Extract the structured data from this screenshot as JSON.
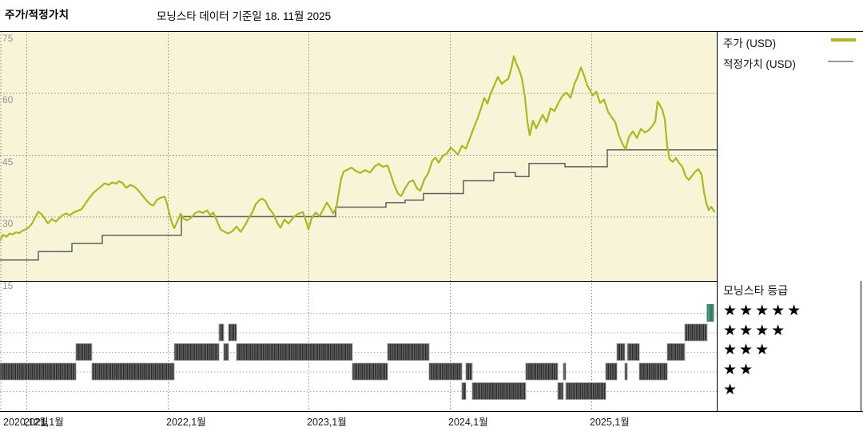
{
  "header": {
    "title": "주가/적정가치",
    "subtitle": "모닝스타 데이터 기준일 18. 11월 2025"
  },
  "legend": {
    "items": [
      {
        "label": "주가 (USD)",
        "series": "price"
      },
      {
        "label": "적정가치 (USD)",
        "series": "fair_value"
      }
    ]
  },
  "rating_legend": {
    "title": "모닝스타 등급",
    "levels": [
      5,
      4,
      3,
      2,
      1
    ],
    "star_char": "★"
  },
  "colors": {
    "price_line": "#adb81a",
    "fair_value_line": "#5e6061",
    "fair_value_swatch": "#9a9a9a",
    "plot_background": "#f7f4d7",
    "grid_line": "#8a8a8a",
    "rating_grid_line": "#ababab",
    "axis_label": "#939393",
    "rating_bar_base": "#2d2d2d",
    "rating_bar_stripe_light": "#7a7a7a",
    "rating_bar_stripe_mid": "#555555",
    "rating_bar_current_base": "#3b8a6d",
    "rating_bar_current_dark": "#2c6e54",
    "rating_bar_current_light": "#5aa185",
    "border": "#000000"
  },
  "chart_data": {
    "type": "line",
    "title": "주가/적정가치",
    "as_of_label": "모닝스타 데이터 기준일 18. 11월 2025",
    "x_unit": "chart-x (0..897 spans 2020-11 .. 2025-11)",
    "x_range": [
      0,
      897
    ],
    "ylim": [
      14.4,
      75
    ],
    "y_ticks": [
      75,
      60,
      45,
      30,
      15
    ],
    "x_gridlines": [
      33,
      210,
      386,
      563,
      740
    ],
    "x_tick_labels": [
      {
        "text": "2020,12월",
        "x": 4
      },
      {
        "text": "2021,1월",
        "x": 30
      },
      {
        "text": "2022,1월",
        "x": 208
      },
      {
        "text": "2023,1월",
        "x": 384
      },
      {
        "text": "2024,1월",
        "x": 561
      },
      {
        "text": "2025,1월",
        "x": 738
      }
    ],
    "series": [
      {
        "name": "주가 (USD)",
        "type": "line",
        "points": [
          [
            0,
            24.2
          ],
          [
            4,
            25.6
          ],
          [
            8,
            25.1
          ],
          [
            12,
            25.9
          ],
          [
            16,
            25.7
          ],
          [
            20,
            26.2
          ],
          [
            24,
            26.0
          ],
          [
            28,
            26.6
          ],
          [
            32,
            26.9
          ],
          [
            36,
            27.4
          ],
          [
            40,
            28.3
          ],
          [
            44,
            29.8
          ],
          [
            48,
            31.2
          ],
          [
            52,
            30.6
          ],
          [
            56,
            29.5
          ],
          [
            60,
            28.4
          ],
          [
            65,
            29.4
          ],
          [
            70,
            28.8
          ],
          [
            74,
            29.6
          ],
          [
            78,
            30.3
          ],
          [
            83,
            30.8
          ],
          [
            87,
            30.3
          ],
          [
            92,
            31.0
          ],
          [
            97,
            31.4
          ],
          [
            102,
            31.8
          ],
          [
            107,
            33.2
          ],
          [
            112,
            34.6
          ],
          [
            117,
            35.8
          ],
          [
            122,
            36.6
          ],
          [
            127,
            37.4
          ],
          [
            131,
            38.1
          ],
          [
            136,
            37.7
          ],
          [
            140,
            38.3
          ],
          [
            145,
            38.0
          ],
          [
            149,
            38.6
          ],
          [
            153,
            38.2
          ],
          [
            158,
            37.0
          ],
          [
            163,
            37.7
          ],
          [
            168,
            37.3
          ],
          [
            173,
            36.4
          ],
          [
            178,
            35.2
          ],
          [
            183,
            34.0
          ],
          [
            188,
            33.0
          ],
          [
            192,
            32.7
          ],
          [
            196,
            34.0
          ],
          [
            201,
            34.6
          ],
          [
            206,
            34.8
          ],
          [
            209,
            33.2
          ],
          [
            212,
            30.6
          ],
          [
            215,
            28.6
          ],
          [
            218,
            27.2
          ],
          [
            222,
            28.9
          ],
          [
            226,
            30.7
          ],
          [
            230,
            29.5
          ],
          [
            234,
            29.1
          ],
          [
            239,
            29.7
          ],
          [
            244,
            30.8
          ],
          [
            249,
            31.3
          ],
          [
            254,
            30.9
          ],
          [
            259,
            31.5
          ],
          [
            263,
            30.4
          ],
          [
            267,
            31.0
          ],
          [
            271,
            29.2
          ],
          [
            276,
            26.9
          ],
          [
            281,
            26.3
          ],
          [
            286,
            25.9
          ],
          [
            291,
            26.5
          ],
          [
            296,
            27.6
          ],
          [
            301,
            26.3
          ],
          [
            306,
            27.7
          ],
          [
            311,
            29.5
          ],
          [
            316,
            31.1
          ],
          [
            320,
            33.0
          ],
          [
            324,
            33.9
          ],
          [
            328,
            34.4
          ],
          [
            332,
            33.8
          ],
          [
            337,
            31.9
          ],
          [
            342,
            30.7
          ],
          [
            347,
            28.5
          ],
          [
            351,
            27.3
          ],
          [
            356,
            29.3
          ],
          [
            361,
            28.3
          ],
          [
            367,
            29.8
          ],
          [
            373,
            30.7
          ],
          [
            379,
            31.1
          ],
          [
            383,
            28.9
          ],
          [
            386,
            26.9
          ],
          [
            390,
            29.6
          ],
          [
            395,
            31.0
          ],
          [
            400,
            30.1
          ],
          [
            404,
            31.6
          ],
          [
            409,
            33.4
          ],
          [
            413,
            32.2
          ],
          [
            417,
            30.8
          ],
          [
            421,
            32.2
          ],
          [
            424,
            35.9
          ],
          [
            427,
            39.2
          ],
          [
            430,
            40.9
          ],
          [
            435,
            41.4
          ],
          [
            440,
            41.9
          ],
          [
            445,
            41.1
          ],
          [
            451,
            40.6
          ],
          [
            457,
            41.3
          ],
          [
            463,
            40.7
          ],
          [
            469,
            42.2
          ],
          [
            474,
            42.8
          ],
          [
            479,
            42.1
          ],
          [
            485,
            42.4
          ],
          [
            489,
            40.2
          ],
          [
            493,
            37.8
          ],
          [
            498,
            35.6
          ],
          [
            502,
            35.0
          ],
          [
            507,
            36.9
          ],
          [
            512,
            38.4
          ],
          [
            517,
            38.8
          ],
          [
            522,
            36.8
          ],
          [
            526,
            36.3
          ],
          [
            531,
            39.0
          ],
          [
            536,
            40.6
          ],
          [
            541,
            43.6
          ],
          [
            545,
            44.3
          ],
          [
            549,
            43.1
          ],
          [
            554,
            44.7
          ],
          [
            559,
            45.3
          ],
          [
            564,
            46.7
          ],
          [
            569,
            45.9
          ],
          [
            573,
            45.0
          ],
          [
            578,
            47.2
          ],
          [
            583,
            46.5
          ],
          [
            588,
            49.0
          ],
          [
            593,
            51.6
          ],
          [
            598,
            54.0
          ],
          [
            602,
            56.3
          ],
          [
            606,
            58.8
          ],
          [
            610,
            57.4
          ],
          [
            614,
            59.9
          ],
          [
            618,
            61.6
          ],
          [
            623,
            63.9
          ],
          [
            628,
            62.2
          ],
          [
            632,
            62.9
          ],
          [
            636,
            63.4
          ],
          [
            640,
            66.0
          ],
          [
            643,
            68.9
          ],
          [
            646,
            67.2
          ],
          [
            650,
            65.4
          ],
          [
            653,
            63.7
          ],
          [
            657,
            58.9
          ],
          [
            660,
            53.0
          ],
          [
            663,
            49.7
          ],
          [
            667,
            53.3
          ],
          [
            671,
            51.4
          ],
          [
            675,
            53.0
          ],
          [
            679,
            54.7
          ],
          [
            684,
            52.9
          ],
          [
            689,
            56.3
          ],
          [
            694,
            55.6
          ],
          [
            699,
            57.7
          ],
          [
            704,
            59.3
          ],
          [
            709,
            60.1
          ],
          [
            714,
            58.8
          ],
          [
            719,
            62.2
          ],
          [
            723,
            64.0
          ],
          [
            727,
            66.2
          ],
          [
            731,
            64.2
          ],
          [
            735,
            61.8
          ],
          [
            738,
            60.8
          ],
          [
            742,
            59.4
          ],
          [
            746,
            60.3
          ],
          [
            751,
            57.6
          ],
          [
            756,
            58.4
          ],
          [
            761,
            55.4
          ],
          [
            766,
            54.0
          ],
          [
            770,
            52.9
          ],
          [
            774,
            50.0
          ],
          [
            779,
            47.6
          ],
          [
            783,
            46.3
          ],
          [
            787,
            49.3
          ],
          [
            792,
            50.7
          ],
          [
            797,
            49.1
          ],
          [
            802,
            51.3
          ],
          [
            807,
            50.4
          ],
          [
            812,
            51.0
          ],
          [
            816,
            51.9
          ],
          [
            820,
            53.1
          ],
          [
            823,
            57.9
          ],
          [
            826,
            57.0
          ],
          [
            829,
            55.8
          ],
          [
            832,
            53.6
          ],
          [
            835,
            47.0
          ],
          [
            838,
            43.9
          ],
          [
            842,
            43.3
          ],
          [
            846,
            44.2
          ],
          [
            850,
            43.0
          ],
          [
            854,
            42.1
          ],
          [
            858,
            39.8
          ],
          [
            862,
            38.9
          ],
          [
            866,
            39.9
          ],
          [
            870,
            40.9
          ],
          [
            874,
            41.5
          ],
          [
            878,
            40.2
          ],
          [
            881,
            36.0
          ],
          [
            884,
            33.2
          ],
          [
            887,
            31.6
          ],
          [
            890,
            32.4
          ],
          [
            894,
            31.2
          ]
        ]
      },
      {
        "name": "적정가치 (USD)",
        "type": "step",
        "points": [
          [
            0,
            19.5
          ],
          [
            48,
            21.5
          ],
          [
            90,
            23.5
          ],
          [
            128,
            25.5
          ],
          [
            227,
            30.0
          ],
          [
            420,
            32.3
          ],
          [
            483,
            33.4
          ],
          [
            507,
            34.0
          ],
          [
            530,
            35.6
          ],
          [
            580,
            38.7
          ],
          [
            618,
            40.7
          ],
          [
            645,
            39.7
          ],
          [
            662,
            42.9
          ],
          [
            707,
            42.1
          ],
          [
            760,
            46.2
          ],
          [
            897,
            46.2
          ]
        ]
      }
    ],
    "rating_series": {
      "name": "모닝스타 등급",
      "levels": [
        5,
        4,
        3,
        2,
        1
      ],
      "segments": [
        {
          "from": 0,
          "to": 95,
          "stars": 2
        },
        {
          "from": 95,
          "to": 115,
          "stars": 3
        },
        {
          "from": 115,
          "to": 218,
          "stars": 2
        },
        {
          "from": 218,
          "to": 274,
          "stars": 3
        },
        {
          "from": 274,
          "to": 280,
          "stars": 4
        },
        {
          "from": 280,
          "to": 286,
          "stars": 3
        },
        {
          "from": 286,
          "to": 296,
          "stars": 4
        },
        {
          "from": 296,
          "to": 441,
          "stars": 3
        },
        {
          "from": 441,
          "to": 485,
          "stars": 2
        },
        {
          "from": 485,
          "to": 537,
          "stars": 3
        },
        {
          "from": 537,
          "to": 578,
          "stars": 2
        },
        {
          "from": 578,
          "to": 583,
          "stars": 1
        },
        {
          "from": 583,
          "to": 591,
          "stars": 2
        },
        {
          "from": 591,
          "to": 658,
          "stars": 1
        },
        {
          "from": 658,
          "to": 698,
          "stars": 2
        },
        {
          "from": 698,
          "to": 705,
          "stars": 1
        },
        {
          "from": 705,
          "to": 708,
          "stars": 2
        },
        {
          "from": 708,
          "to": 758,
          "stars": 1
        },
        {
          "from": 758,
          "to": 772,
          "stars": 2
        },
        {
          "from": 772,
          "to": 782,
          "stars": 3
        },
        {
          "from": 782,
          "to": 785,
          "stars": 2
        },
        {
          "from": 785,
          "to": 800,
          "stars": 3
        },
        {
          "from": 800,
          "to": 835,
          "stars": 2
        },
        {
          "from": 835,
          "to": 857,
          "stars": 3
        },
        {
          "from": 857,
          "to": 885,
          "stars": 4
        },
        {
          "from": 885,
          "to": 893,
          "stars": 5,
          "current": true
        }
      ]
    }
  }
}
